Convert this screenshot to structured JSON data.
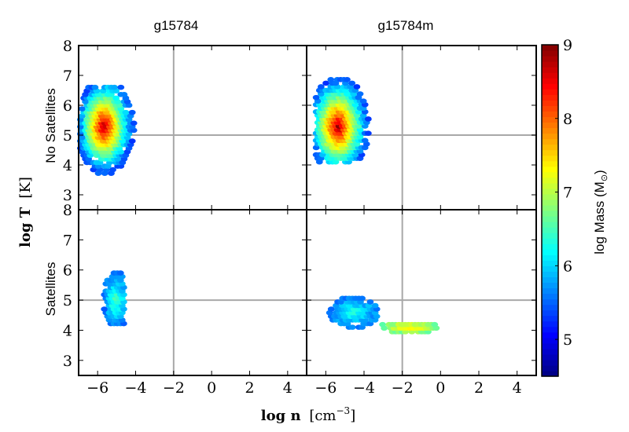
{
  "chart_data": {
    "type": "heatmap",
    "column_titles": [
      "g15784",
      "g15784m"
    ],
    "row_labels": [
      "No Satellites",
      "Satellites"
    ],
    "xlabel_main": "log n",
    "xlabel_unit": "[cm",
    "xlabel_exp": "−3",
    "xlabel_close": "]",
    "ylabel_main": "log T",
    "ylabel_unit": "[K]",
    "xlim": [
      -7,
      5
    ],
    "ylim": [
      2.5,
      8
    ],
    "xticks": [
      -6,
      -4,
      -2,
      0,
      2,
      4
    ],
    "xtick_labels": [
      "−6",
      "−4",
      "−2",
      "0",
      "2",
      "4"
    ],
    "yticks": [
      3,
      4,
      5,
      6,
      7,
      8
    ],
    "ytick_labels": [
      "3",
      "4",
      "5",
      "6",
      "7",
      "8"
    ],
    "reference_lines": {
      "x": -2,
      "y": 5
    },
    "colorbar": {
      "label_main": "log Mass (M",
      "label_sub": "⊙",
      "label_close": ")",
      "range": [
        4.5,
        9
      ],
      "ticks": [
        5,
        6,
        7,
        8,
        9
      ],
      "tick_labels": [
        "5",
        "6",
        "7",
        "8",
        "9"
      ],
      "colormap": "jet"
    },
    "panels": [
      {
        "column": "g15784",
        "row": "No Satellites",
        "clusters": [
          {
            "x_range": [
              -6.9,
              -4.0
            ],
            "y_range": [
              3.6,
              6.7
            ],
            "center": [
              -5.6,
              5.3
            ],
            "peak_mass": 8.9,
            "edge_mass": 5.4
          }
        ]
      },
      {
        "column": "g15784m",
        "row": "No Satellites",
        "clusters": [
          {
            "x_range": [
              -6.5,
              -3.5
            ],
            "y_range": [
              4.1,
              7.3
            ],
            "center": [
              -5.3,
              5.3
            ],
            "peak_mass": 8.9,
            "edge_mass": 5.4
          }
        ]
      },
      {
        "column": "g15784",
        "row": "Satellites",
        "clusters": [
          {
            "x_range": [
              -5.9,
              -4.6
            ],
            "y_range": [
              4.1,
              5.9
            ],
            "center": [
              -5.0,
              5.0
            ],
            "peak_mass": 6.6,
            "edge_mass": 5.6
          }
        ]
      },
      {
        "column": "g15784m",
        "row": "Satellites",
        "clusters": [
          {
            "x_range": [
              -5.8,
              -3.2
            ],
            "y_range": [
              4.1,
              5.1
            ],
            "center": [
              -4.5,
              4.6
            ],
            "peak_mass": 6.4,
            "edge_mass": 5.6
          },
          {
            "x_range": [
              -3.2,
              0.1
            ],
            "y_range": [
              3.95,
              4.35
            ],
            "center": [
              -1.5,
              4.1
            ],
            "peak_mass": 7.6,
            "edge_mass": 6.6
          }
        ]
      }
    ]
  }
}
